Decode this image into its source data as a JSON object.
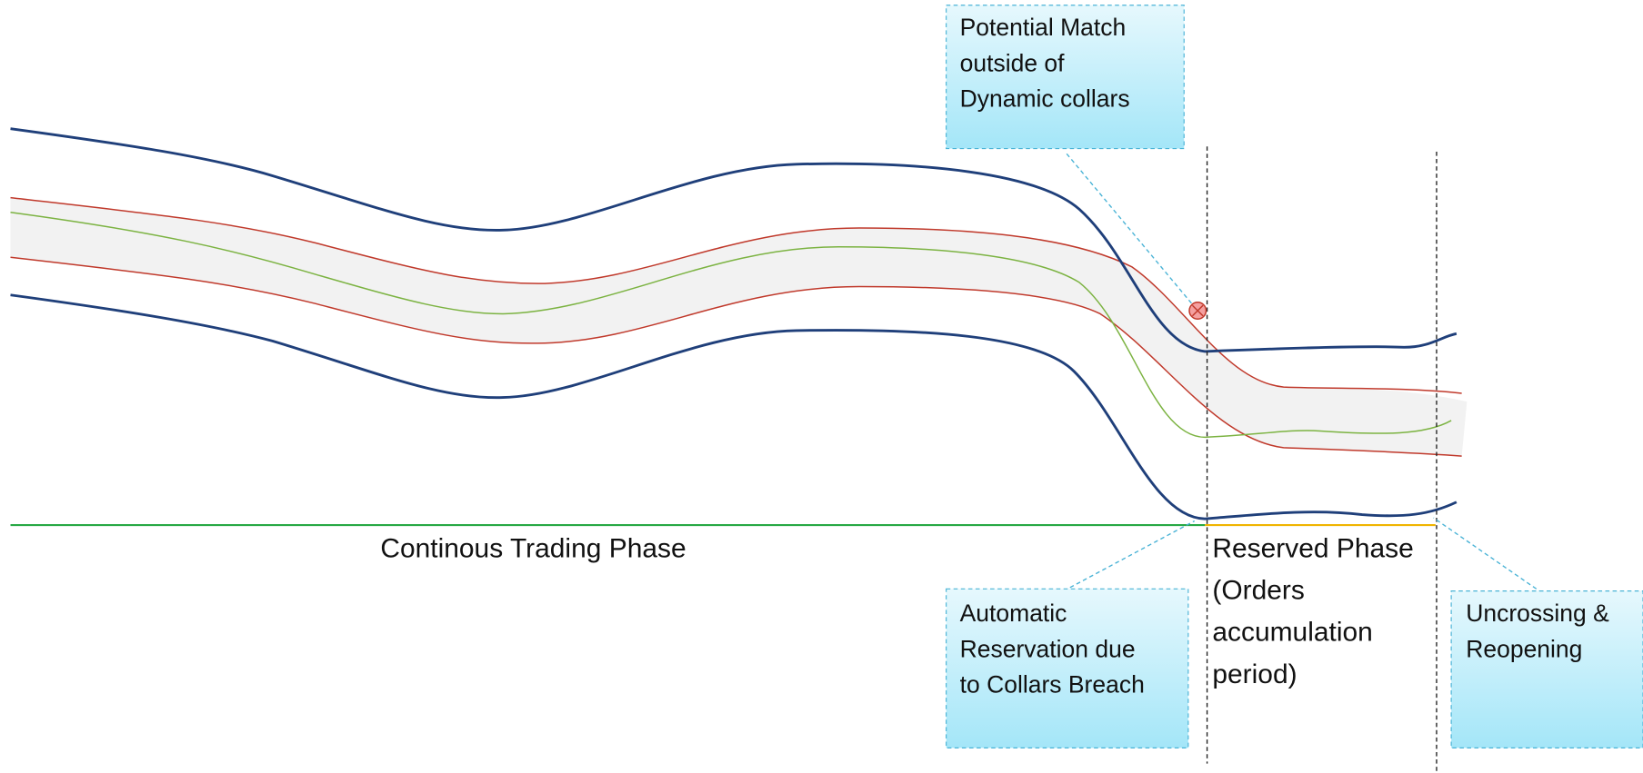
{
  "callouts": [
    {
      "lines": [
        "Potential Match",
        "outside of",
        "Dynamic collars"
      ]
    },
    {
      "lines": [
        "Automatic",
        "Reservation  due",
        "to Collars Breach"
      ]
    },
    {
      "lines": [
        "Uncrossing &",
        "Reopening"
      ]
    }
  ],
  "phases": [
    {
      "lines": [
        "Continous Trading Phase"
      ]
    },
    {
      "lines": [
        "Reserved Phase",
        "(Orders",
        "accumulation",
        "period)"
      ]
    }
  ]
}
